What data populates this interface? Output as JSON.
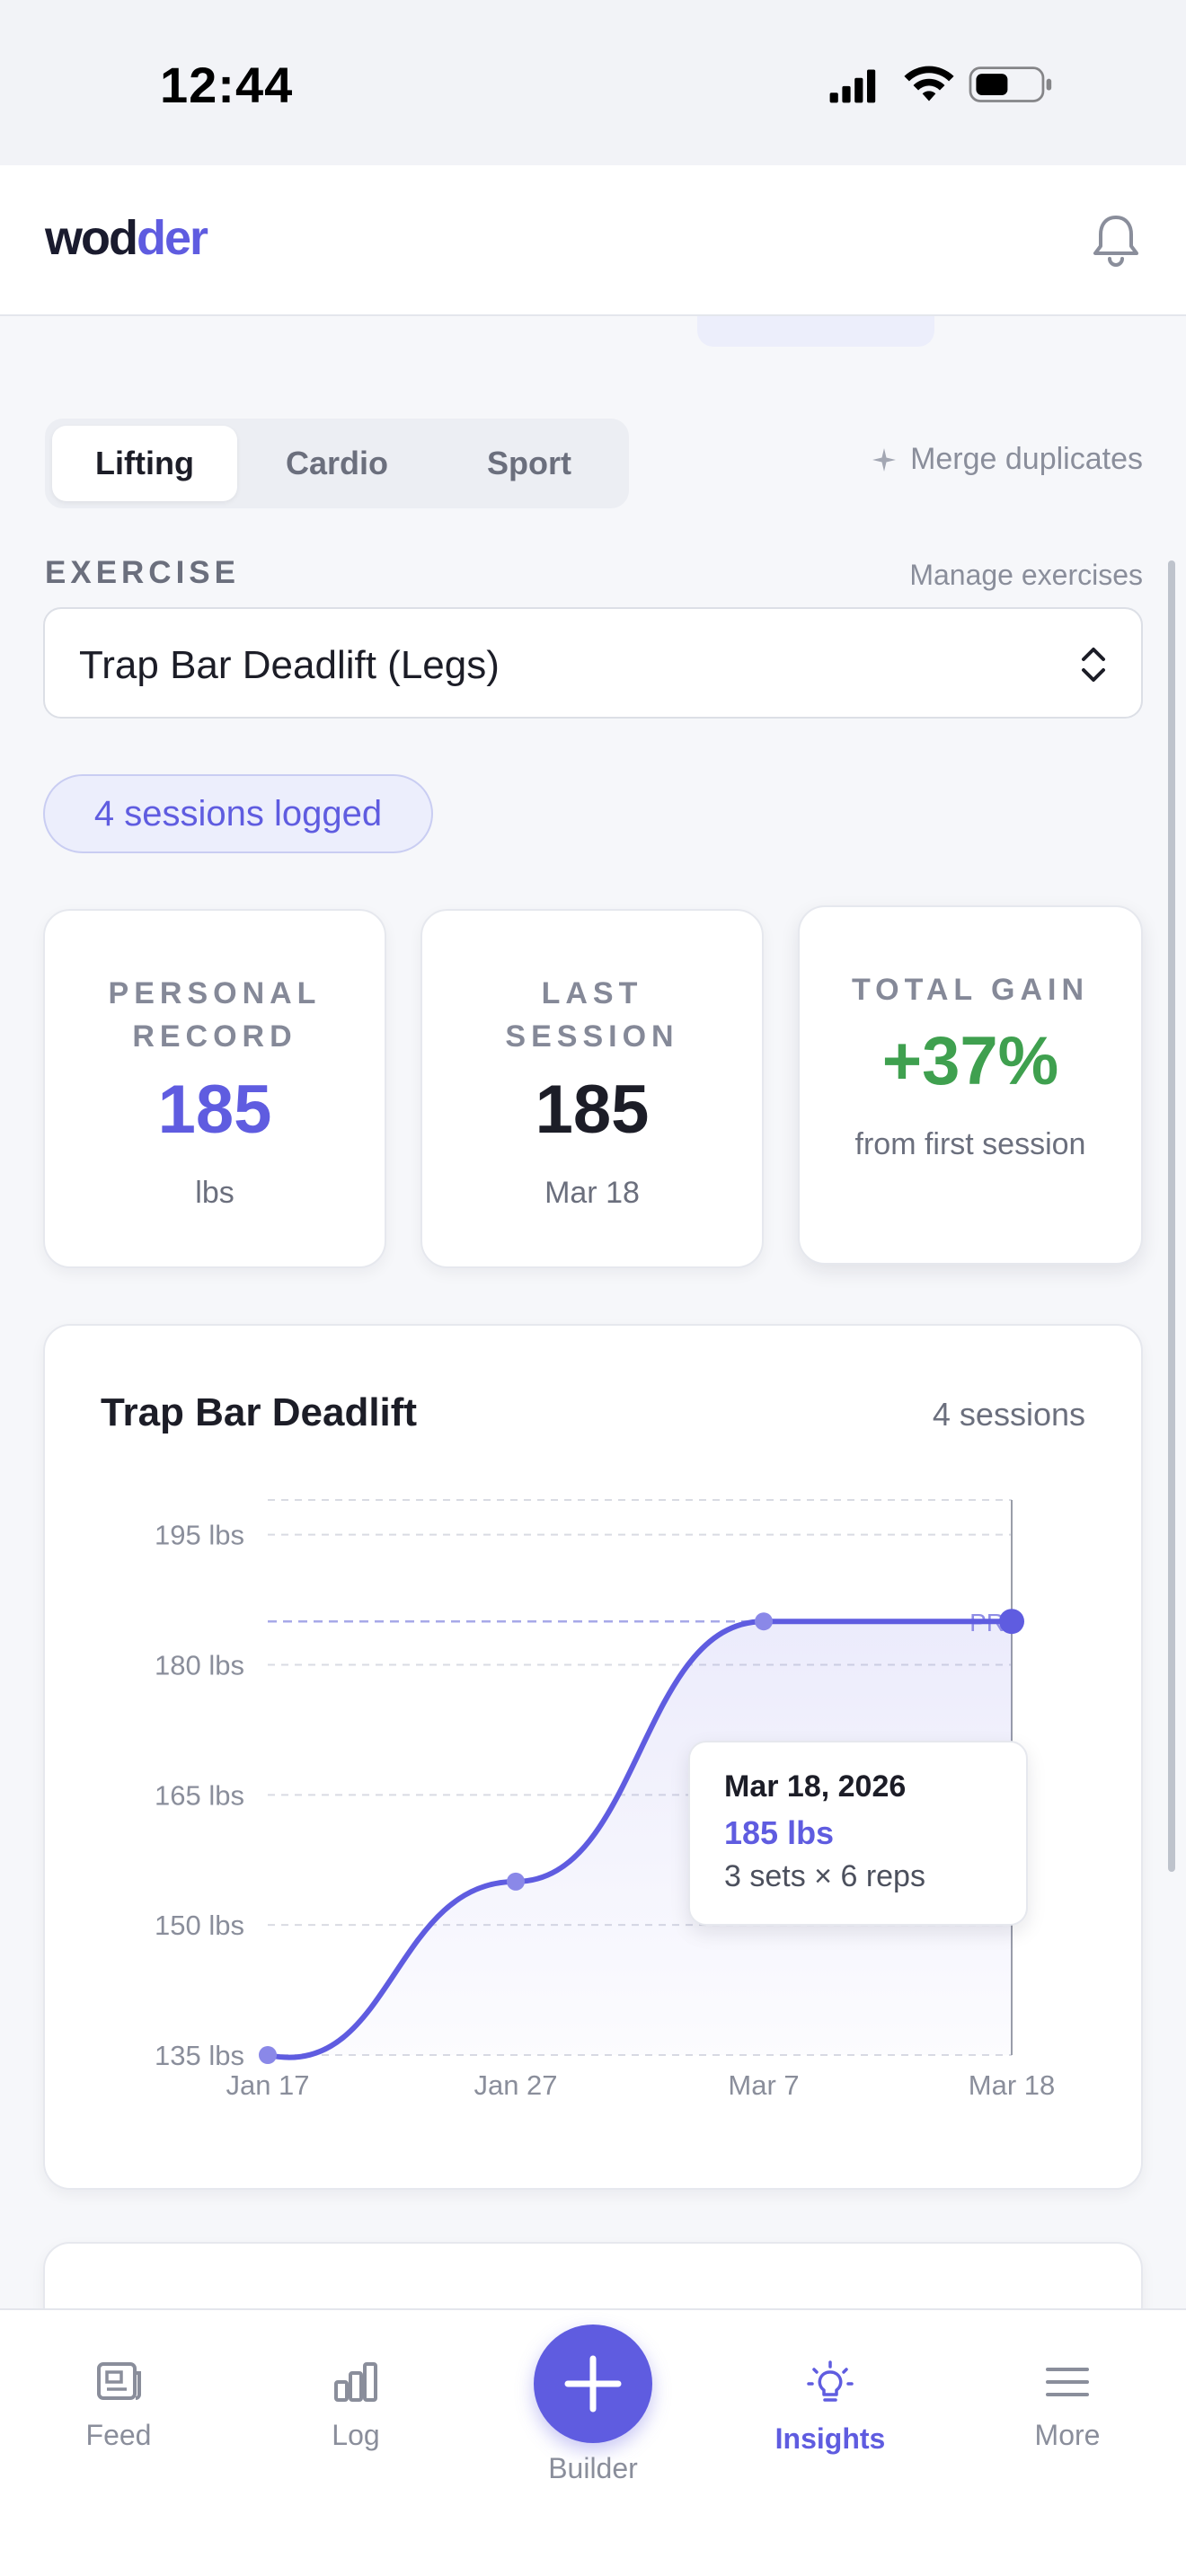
{
  "status_bar": {
    "time": "12:44"
  },
  "header": {
    "logo_part1": "wod",
    "logo_part2": "der"
  },
  "tabs": [
    {
      "label": "Lifting",
      "active": true
    },
    {
      "label": "Cardio",
      "active": false
    },
    {
      "label": "Sport",
      "active": false
    }
  ],
  "merge_label": "Merge duplicates",
  "exercise": {
    "section_label": "EXERCISE",
    "manage_label": "Manage exercises",
    "selected": "Trap Bar Deadlift (Legs)"
  },
  "sessions_pill": "4 sessions logged",
  "stats": {
    "pr": {
      "label": "PERSONAL RECORD",
      "value": "185",
      "unit": "lbs"
    },
    "last": {
      "label": "LAST SESSION",
      "value": "185",
      "date": "Mar 18"
    },
    "gain": {
      "label": "TOTAL GAIN",
      "value": "+37%",
      "sub": "from first session"
    }
  },
  "colors": {
    "accent": "#5f5ce0",
    "positive": "#3fa04f",
    "text": "#1c1d27"
  },
  "chart_card": {
    "title": "Trap Bar Deadlift",
    "sessions": "4 sessions"
  },
  "chart_data": {
    "type": "line",
    "title": "Trap Bar Deadlift",
    "x": [
      "Jan 17",
      "Jan 27",
      "Mar 7",
      "Mar 18"
    ],
    "series": [
      {
        "values": [
          135,
          155,
          185,
          185
        ]
      }
    ],
    "y_ticks": [
      "195 lbs",
      "180 lbs",
      "165 lbs",
      "150 lbs",
      "135 lbs"
    ],
    "ylim": [
      135,
      199
    ],
    "pr_marker": {
      "value": 185,
      "label": "PR"
    },
    "grid": true
  },
  "tooltip": {
    "date": "Mar 18, 2026",
    "value": "185 lbs",
    "detail": "3 sets × 6 reps"
  },
  "nav": {
    "feed": "Feed",
    "log": "Log",
    "builder": "Builder",
    "insights": "Insights",
    "more": "More",
    "active": "insights"
  }
}
